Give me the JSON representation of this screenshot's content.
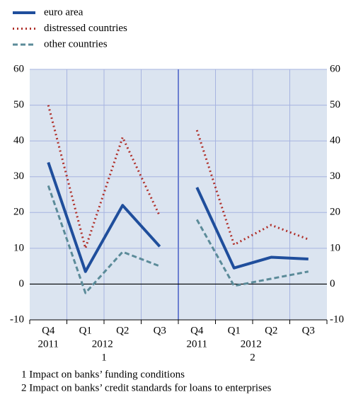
{
  "chart_data": {
    "type": "line",
    "categories": [
      "Q4",
      "Q1",
      "Q2",
      "Q3",
      "Q4",
      "Q1",
      "Q2",
      "Q3"
    ],
    "category_years": [
      "2011",
      "2012",
      null,
      null,
      "2011",
      "2012",
      null,
      null
    ],
    "group_labels": [
      "1",
      "2"
    ],
    "series": [
      {
        "name": "euro area",
        "color": "#1f4e9c",
        "style": "solid",
        "values": [
          34,
          3.5,
          22,
          10.5,
          27,
          4.5,
          7.5,
          7
        ]
      },
      {
        "name": "distressed countries",
        "color": "#b0302a",
        "style": "dotted",
        "values": [
          50,
          10,
          41,
          19,
          43,
          11,
          16.5,
          12.5
        ]
      },
      {
        "name": "other countries",
        "color": "#5b8b99",
        "style": "dashed",
        "values": [
          27.5,
          -2.5,
          9,
          5,
          18,
          -0.5,
          1.5,
          3.5
        ]
      }
    ],
    "ylim": [
      -10,
      60
    ],
    "yticks": [
      -10,
      0,
      10,
      20,
      30,
      40,
      50,
      60
    ],
    "grid": true,
    "notes": [
      "1 Impact on banks’ funding conditions",
      "2 Impact on banks’ credit standards for loans to enterprises"
    ]
  }
}
